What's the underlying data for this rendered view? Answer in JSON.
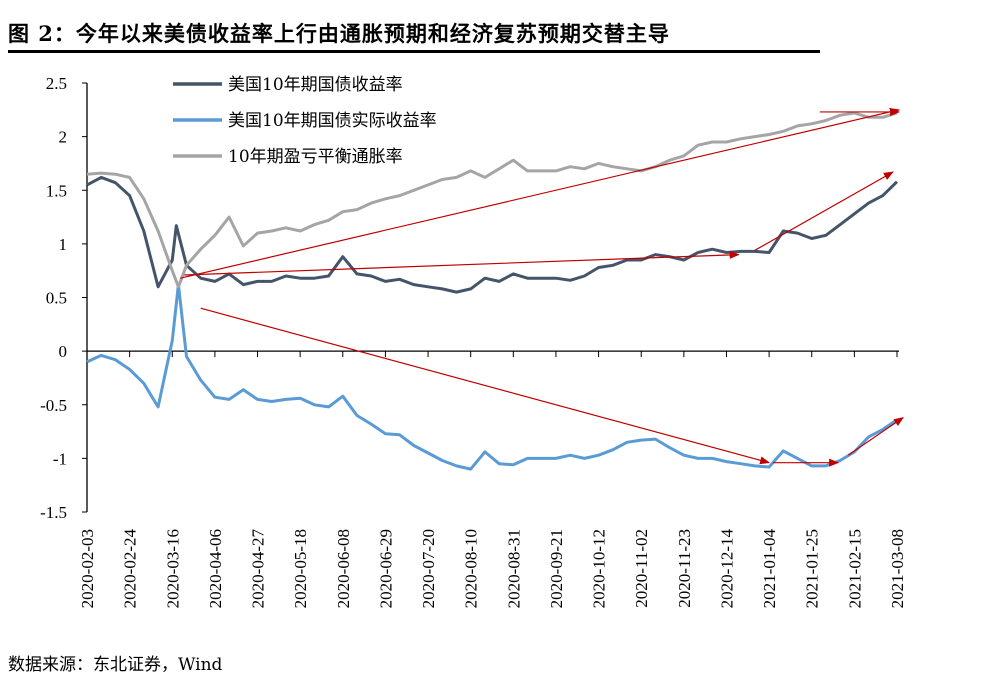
{
  "title": "图 2：今年以来美债收益率上行由通胀预期和经济复苏预期交替主导",
  "source": "数据来源：东北证券，Wind",
  "chart_data": {
    "type": "line",
    "title": "图 2：今年以来美债收益率上行由通胀预期和经济复苏预期交替主导",
    "xlabel": "",
    "ylabel": "",
    "start_date": "2020-02-03",
    "x_unit": "days since 2020-02-03",
    "xlim": [
      0,
      399
    ],
    "ylim": [
      -1.5,
      2.5
    ],
    "yticks": [
      2.5,
      2,
      1.5,
      1,
      0.5,
      0,
      -0.5,
      -1,
      -1.5
    ],
    "ytick_labels": [
      "2.5",
      "2",
      "1.5",
      "1",
      "0.5",
      "0",
      "-0.5",
      "-1",
      "-1.5"
    ],
    "xtick_labels": [
      "2020-02-03",
      "2020-02-24",
      "2020-03-16",
      "2020-04-06",
      "2020-04-27",
      "2020-05-18",
      "2020-06-08",
      "2020-06-29",
      "2020-07-20",
      "2020-08-10",
      "2020-08-31",
      "2020-09-21",
      "2020-10-12",
      "2020-11-02",
      "2020-11-23",
      "2020-12-14",
      "2021-01-04",
      "2021-01-25",
      "2021-02-15",
      "2021-03-08"
    ],
    "grid": false,
    "legend_position": "top-center",
    "series": [
      {
        "name": "美国10年期国债收益率",
        "color": "#44546A",
        "points": [
          [
            0,
            1.55
          ],
          [
            7,
            1.62
          ],
          [
            14,
            1.57
          ],
          [
            21,
            1.45
          ],
          [
            28,
            1.12
          ],
          [
            35,
            0.6
          ],
          [
            42,
            0.85
          ],
          [
            44,
            1.17
          ],
          [
            49,
            0.8
          ],
          [
            56,
            0.68
          ],
          [
            63,
            0.65
          ],
          [
            70,
            0.72
          ],
          [
            77,
            0.62
          ],
          [
            84,
            0.65
          ],
          [
            91,
            0.65
          ],
          [
            98,
            0.7
          ],
          [
            105,
            0.68
          ],
          [
            112,
            0.68
          ],
          [
            119,
            0.7
          ],
          [
            126,
            0.88
          ],
          [
            133,
            0.72
          ],
          [
            140,
            0.7
          ],
          [
            147,
            0.65
          ],
          [
            154,
            0.67
          ],
          [
            161,
            0.62
          ],
          [
            168,
            0.6
          ],
          [
            175,
            0.58
          ],
          [
            182,
            0.55
          ],
          [
            189,
            0.58
          ],
          [
            196,
            0.68
          ],
          [
            203,
            0.65
          ],
          [
            210,
            0.72
          ],
          [
            217,
            0.68
          ],
          [
            224,
            0.68
          ],
          [
            231,
            0.68
          ],
          [
            238,
            0.66
          ],
          [
            245,
            0.7
          ],
          [
            252,
            0.78
          ],
          [
            259,
            0.8
          ],
          [
            266,
            0.85
          ],
          [
            273,
            0.85
          ],
          [
            280,
            0.9
          ],
          [
            287,
            0.88
          ],
          [
            294,
            0.85
          ],
          [
            301,
            0.92
          ],
          [
            308,
            0.95
          ],
          [
            315,
            0.92
          ],
          [
            322,
            0.93
          ],
          [
            329,
            0.93
          ],
          [
            336,
            0.92
          ],
          [
            343,
            1.12
          ],
          [
            350,
            1.1
          ],
          [
            357,
            1.05
          ],
          [
            364,
            1.08
          ],
          [
            371,
            1.18
          ],
          [
            378,
            1.28
          ],
          [
            385,
            1.38
          ],
          [
            392,
            1.45
          ],
          [
            399,
            1.58
          ]
        ]
      },
      {
        "name": "美国10年期国债实际收益率",
        "color": "#5B9BD5",
        "points": [
          [
            0,
            -0.1
          ],
          [
            7,
            -0.04
          ],
          [
            14,
            -0.08
          ],
          [
            21,
            -0.17
          ],
          [
            28,
            -0.3
          ],
          [
            35,
            -0.52
          ],
          [
            42,
            0.1
          ],
          [
            45,
            0.62
          ],
          [
            49,
            -0.05
          ],
          [
            56,
            -0.27
          ],
          [
            63,
            -0.43
          ],
          [
            70,
            -0.45
          ],
          [
            77,
            -0.36
          ],
          [
            84,
            -0.45
          ],
          [
            91,
            -0.47
          ],
          [
            98,
            -0.45
          ],
          [
            105,
            -0.44
          ],
          [
            112,
            -0.5
          ],
          [
            119,
            -0.52
          ],
          [
            126,
            -0.42
          ],
          [
            133,
            -0.6
          ],
          [
            140,
            -0.68
          ],
          [
            147,
            -0.77
          ],
          [
            154,
            -0.78
          ],
          [
            161,
            -0.88
          ],
          [
            168,
            -0.95
          ],
          [
            175,
            -1.02
          ],
          [
            182,
            -1.07
          ],
          [
            189,
            -1.1
          ],
          [
            196,
            -0.94
          ],
          [
            203,
            -1.05
          ],
          [
            210,
            -1.06
          ],
          [
            217,
            -1.0
          ],
          [
            224,
            -1.0
          ],
          [
            231,
            -1.0
          ],
          [
            238,
            -0.97
          ],
          [
            245,
            -1.0
          ],
          [
            252,
            -0.97
          ],
          [
            259,
            -0.92
          ],
          [
            266,
            -0.85
          ],
          [
            273,
            -0.83
          ],
          [
            280,
            -0.82
          ],
          [
            287,
            -0.9
          ],
          [
            294,
            -0.97
          ],
          [
            301,
            -1.0
          ],
          [
            308,
            -1.0
          ],
          [
            315,
            -1.03
          ],
          [
            322,
            -1.05
          ],
          [
            329,
            -1.07
          ],
          [
            336,
            -1.08
          ],
          [
            343,
            -0.93
          ],
          [
            350,
            -1.0
          ],
          [
            357,
            -1.07
          ],
          [
            364,
            -1.07
          ],
          [
            371,
            -1.02
          ],
          [
            378,
            -0.94
          ],
          [
            385,
            -0.8
          ],
          [
            392,
            -0.73
          ],
          [
            399,
            -0.64
          ]
        ]
      },
      {
        "name": "10年期盈亏平衡通胀率",
        "color": "#A5A5A5",
        "points": [
          [
            0,
            1.65
          ],
          [
            7,
            1.66
          ],
          [
            14,
            1.65
          ],
          [
            21,
            1.62
          ],
          [
            28,
            1.42
          ],
          [
            35,
            1.12
          ],
          [
            42,
            0.75
          ],
          [
            45,
            0.6
          ],
          [
            49,
            0.8
          ],
          [
            56,
            0.95
          ],
          [
            63,
            1.08
          ],
          [
            70,
            1.25
          ],
          [
            77,
            0.98
          ],
          [
            84,
            1.1
          ],
          [
            91,
            1.12
          ],
          [
            98,
            1.15
          ],
          [
            105,
            1.12
          ],
          [
            112,
            1.18
          ],
          [
            119,
            1.22
          ],
          [
            126,
            1.3
          ],
          [
            133,
            1.32
          ],
          [
            140,
            1.38
          ],
          [
            147,
            1.42
          ],
          [
            154,
            1.45
          ],
          [
            161,
            1.5
          ],
          [
            168,
            1.55
          ],
          [
            175,
            1.6
          ],
          [
            182,
            1.62
          ],
          [
            189,
            1.68
          ],
          [
            196,
            1.62
          ],
          [
            203,
            1.7
          ],
          [
            210,
            1.78
          ],
          [
            217,
            1.68
          ],
          [
            224,
            1.68
          ],
          [
            231,
            1.68
          ],
          [
            238,
            1.72
          ],
          [
            245,
            1.7
          ],
          [
            252,
            1.75
          ],
          [
            259,
            1.72
          ],
          [
            266,
            1.7
          ],
          [
            273,
            1.68
          ],
          [
            280,
            1.72
          ],
          [
            287,
            1.78
          ],
          [
            294,
            1.82
          ],
          [
            301,
            1.92
          ],
          [
            308,
            1.95
          ],
          [
            315,
            1.95
          ],
          [
            322,
            1.98
          ],
          [
            329,
            2.0
          ],
          [
            336,
            2.02
          ],
          [
            343,
            2.05
          ],
          [
            350,
            2.1
          ],
          [
            357,
            2.12
          ],
          [
            364,
            2.15
          ],
          [
            371,
            2.2
          ],
          [
            378,
            2.22
          ],
          [
            385,
            2.18
          ],
          [
            392,
            2.18
          ],
          [
            399,
            2.22
          ]
        ]
      }
    ],
    "annotations": [
      {
        "type": "arrow",
        "color": "#C00000",
        "from": [
          46,
          0.68
        ],
        "to": [
          400,
          2.25
        ]
      },
      {
        "type": "arrow",
        "color": "#C00000",
        "from": [
          361,
          2.23
        ],
        "to": [
          400,
          2.23
        ]
      },
      {
        "type": "arrow",
        "color": "#C00000",
        "from": [
          48,
          0.71
        ],
        "to": [
          321,
          0.9
        ]
      },
      {
        "type": "arrow",
        "color": "#C00000",
        "from": [
          329,
          0.94
        ],
        "to": [
          397,
          1.67
        ]
      },
      {
        "type": "arrow",
        "color": "#C00000",
        "from": [
          56,
          0.4
        ],
        "to": [
          336,
          -1.04
        ]
      },
      {
        "type": "arrow",
        "color": "#C00000",
        "from": [
          338,
          -1.04
        ],
        "to": [
          370,
          -1.04
        ]
      },
      {
        "type": "arrow",
        "color": "#C00000",
        "from": [
          375,
          -0.97
        ],
        "to": [
          402,
          -0.62
        ]
      }
    ]
  }
}
